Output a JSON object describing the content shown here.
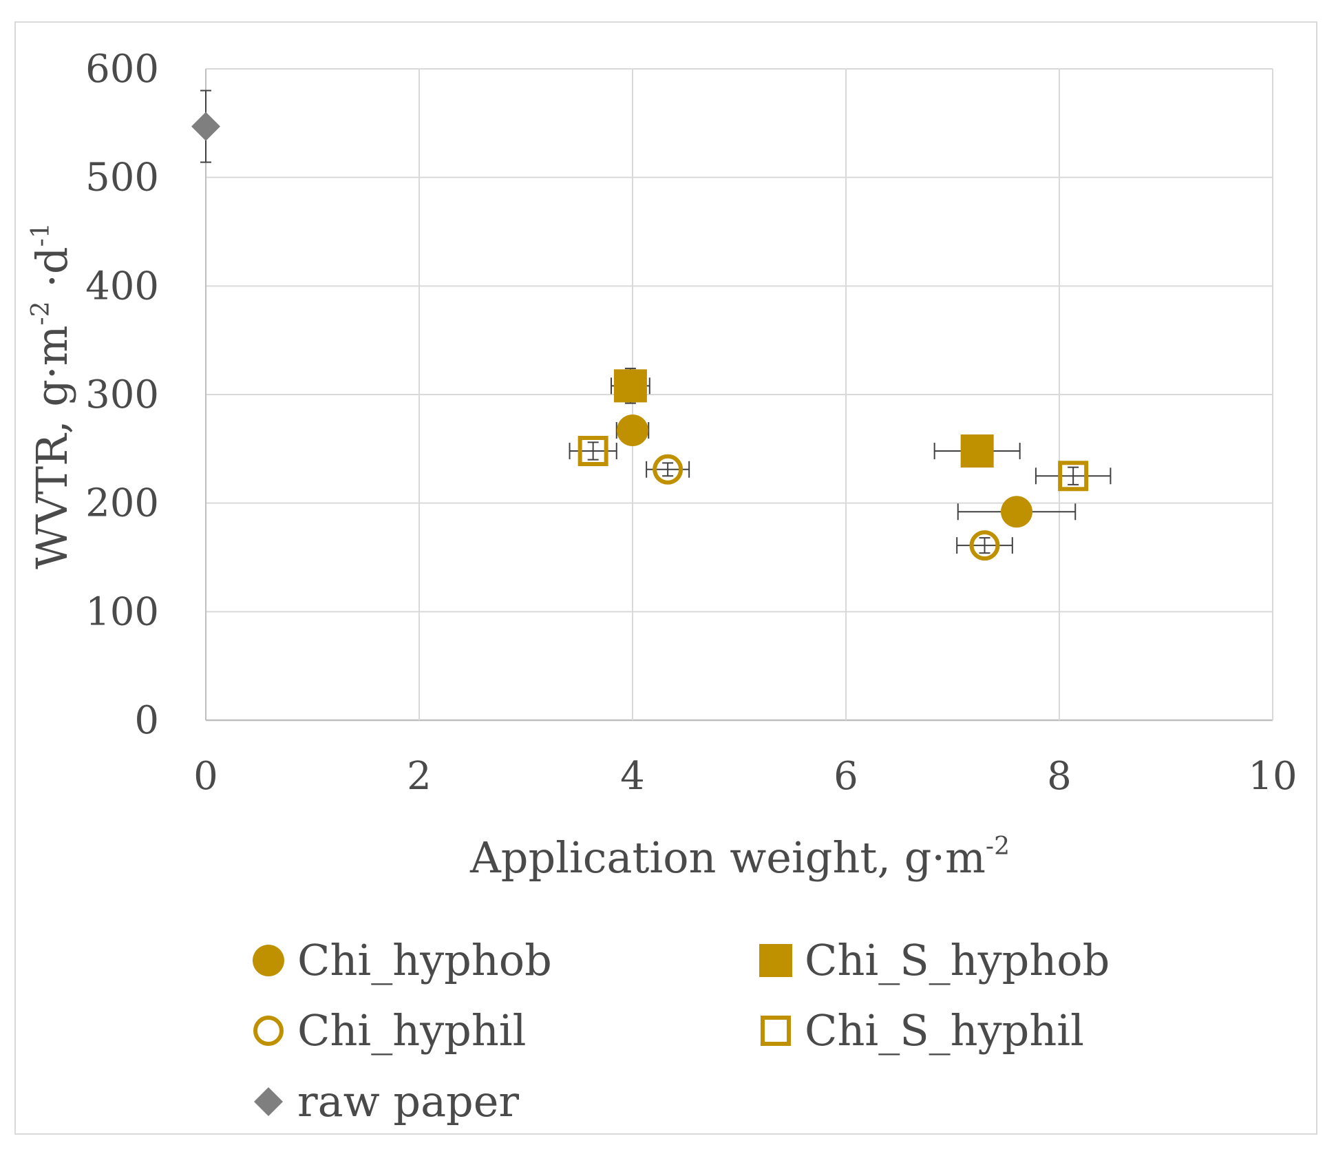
{
  "chart_data": {
    "type": "scatter",
    "xlabel": "Application weight, g·m",
    "xlabel_sup": "-2",
    "ylabel": "WVTR, g·m",
    "ylabel_sup1": "-2",
    "ylabel_mid": " ·d",
    "ylabel_sup2": "-1",
    "xlim": [
      0,
      10
    ],
    "ylim": [
      0,
      600
    ],
    "x_ticks": [
      "0",
      "2",
      "4",
      "6",
      "8",
      "10"
    ],
    "y_ticks": [
      "0",
      "100",
      "200",
      "300",
      "400",
      "500",
      "600"
    ],
    "grid": true,
    "legend_position": "bottom",
    "colors": {
      "gold": "#BF9000",
      "gray": "#7F7F7F",
      "grid": "#D9D9D9",
      "errbar": "#404040"
    },
    "series": [
      {
        "name": "Chi_hyphob",
        "marker": "circle-filled",
        "color": "#BF9000",
        "points": [
          {
            "x": 4.0,
            "y": 267,
            "xerr": 0.15,
            "yerr": 4
          },
          {
            "x": 7.6,
            "y": 192,
            "xerr": 0.55,
            "yerr": 4
          }
        ]
      },
      {
        "name": "Chi_S_hyphob",
        "marker": "square-filled",
        "color": "#BF9000",
        "points": [
          {
            "x": 3.98,
            "y": 308,
            "xerr": 0.18,
            "yerr": 16
          },
          {
            "x": 7.23,
            "y": 248,
            "xerr": 0.4,
            "yerr": 4
          }
        ]
      },
      {
        "name": "Chi_hyphil",
        "marker": "circle-open",
        "color": "#BF9000",
        "points": [
          {
            "x": 4.33,
            "y": 231,
            "xerr": 0.2,
            "yerr": 6
          },
          {
            "x": 7.3,
            "y": 161,
            "xerr": 0.26,
            "yerr": 7
          }
        ]
      },
      {
        "name": "Chi_S_hyphil",
        "marker": "square-open",
        "color": "#BF9000",
        "points": [
          {
            "x": 3.63,
            "y": 248,
            "xerr": 0.22,
            "yerr": 8
          },
          {
            "x": 8.13,
            "y": 225,
            "xerr": 0.35,
            "yerr": 8
          }
        ]
      },
      {
        "name": "raw paper",
        "marker": "diamond-filled",
        "color": "#7F7F7F",
        "points": [
          {
            "x": 0.0,
            "y": 547,
            "xerr": 0,
            "yerr": 33
          }
        ]
      }
    ]
  }
}
